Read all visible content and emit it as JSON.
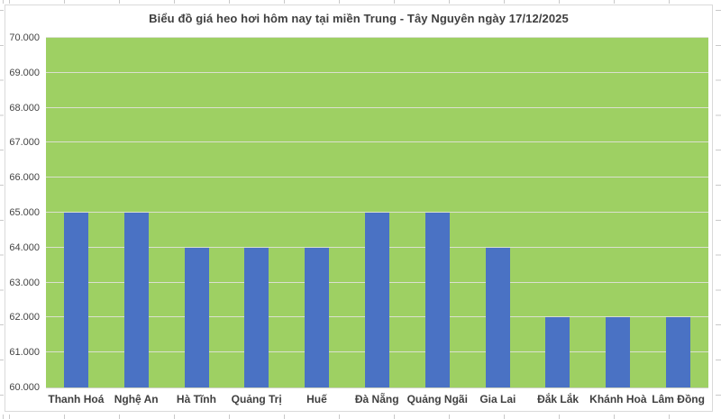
{
  "chart_data": {
    "type": "bar",
    "title": "Biểu đồ giá heo hơi hôm nay tại miền Trung - Tây Nguyên ngày 17/12/2025",
    "categories": [
      "Thanh Hoá",
      "Nghệ An",
      "Hà Tĩnh",
      "Quảng Trị",
      "Huế",
      "Đà Nẵng",
      "Quảng Ngãi",
      "Gia Lai",
      "Đắk Lắk",
      "Khánh Hoà",
      "Lâm Đồng"
    ],
    "values": [
      65000,
      65000,
      64000,
      64000,
      64000,
      65000,
      65000,
      64000,
      62000,
      62000,
      62000
    ],
    "xlabel": "",
    "ylabel": "",
    "ylim": [
      60000,
      70000
    ],
    "ytick_step": 1000,
    "ytick_labels": [
      "60.000",
      "61.000",
      "62.000",
      "63.000",
      "64.000",
      "65.000",
      "66.000",
      "67.000",
      "68.000",
      "69.000",
      "70.000"
    ],
    "grid": true,
    "legend": "none",
    "colors": {
      "bar": "#4a72c4",
      "plot_background": "#9ed063",
      "gridline": "#dbe0d0",
      "title_text": "#3f3f3f",
      "axis_text": "#444444",
      "chart_border": "#d9d9d9"
    }
  }
}
